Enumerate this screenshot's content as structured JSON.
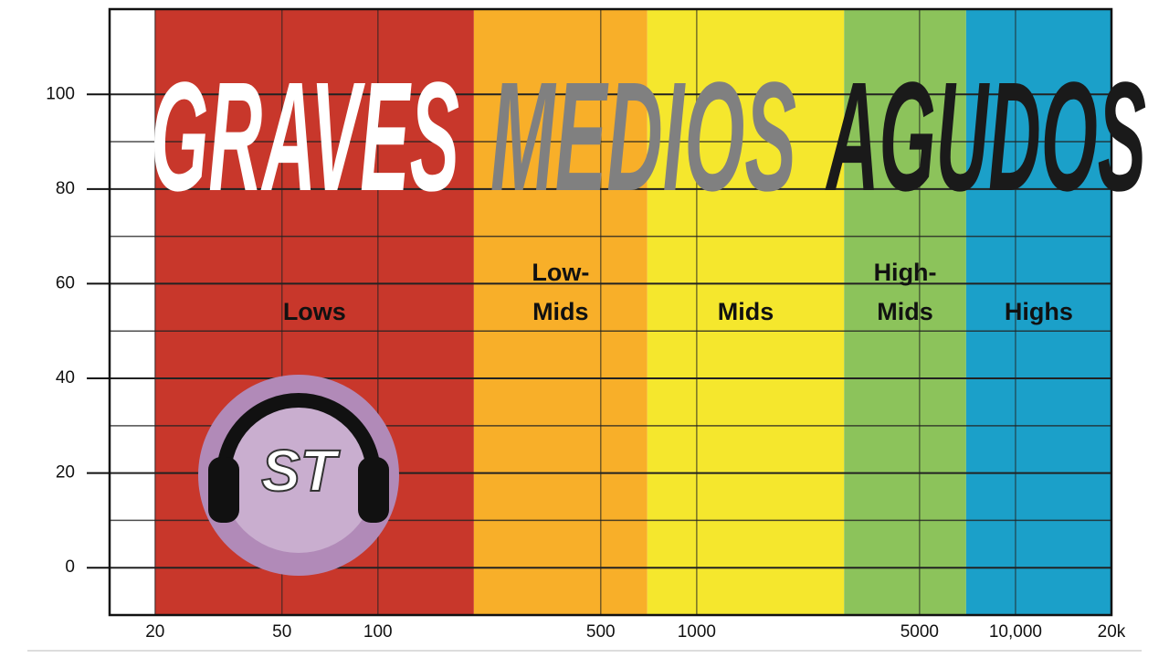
{
  "chart_data": {
    "type": "bands",
    "headings": [
      {
        "text": "GRAVES",
        "color": "#ffffff"
      },
      {
        "text": "MEDIOS",
        "color": "#808080"
      },
      {
        "text": "AGUDOS",
        "color": "#1a1a1a"
      }
    ],
    "bands": [
      {
        "label": [
          "Lows"
        ],
        "from": 20,
        "to": 200,
        "color": "#c8372b"
      },
      {
        "label": [
          "Low-",
          "Mids"
        ],
        "from": 200,
        "to": 700,
        "color": "#f8af29"
      },
      {
        "label": [
          "Mids"
        ],
        "from": 700,
        "to": 2900,
        "color": "#f5e72d"
      },
      {
        "label": [
          "High-",
          "Mids"
        ],
        "from": 2900,
        "to": 7000,
        "color": "#8cc35b"
      },
      {
        "label": [
          "Highs"
        ],
        "from": 7000,
        "to": 20000,
        "color": "#1ba0c9"
      }
    ],
    "xlim": [
      14.4,
      20000
    ],
    "xticks": [
      20,
      50,
      100,
      500,
      1000,
      5000,
      {
        "value": 10000,
        "label": "10,000"
      },
      {
        "value": 20000,
        "label": "20k"
      }
    ],
    "log_x": true,
    "ylim": [
      -10,
      118
    ],
    "yticks": [
      0,
      20,
      40,
      60,
      80,
      100
    ],
    "grid": true,
    "logo_text": "ST"
  }
}
